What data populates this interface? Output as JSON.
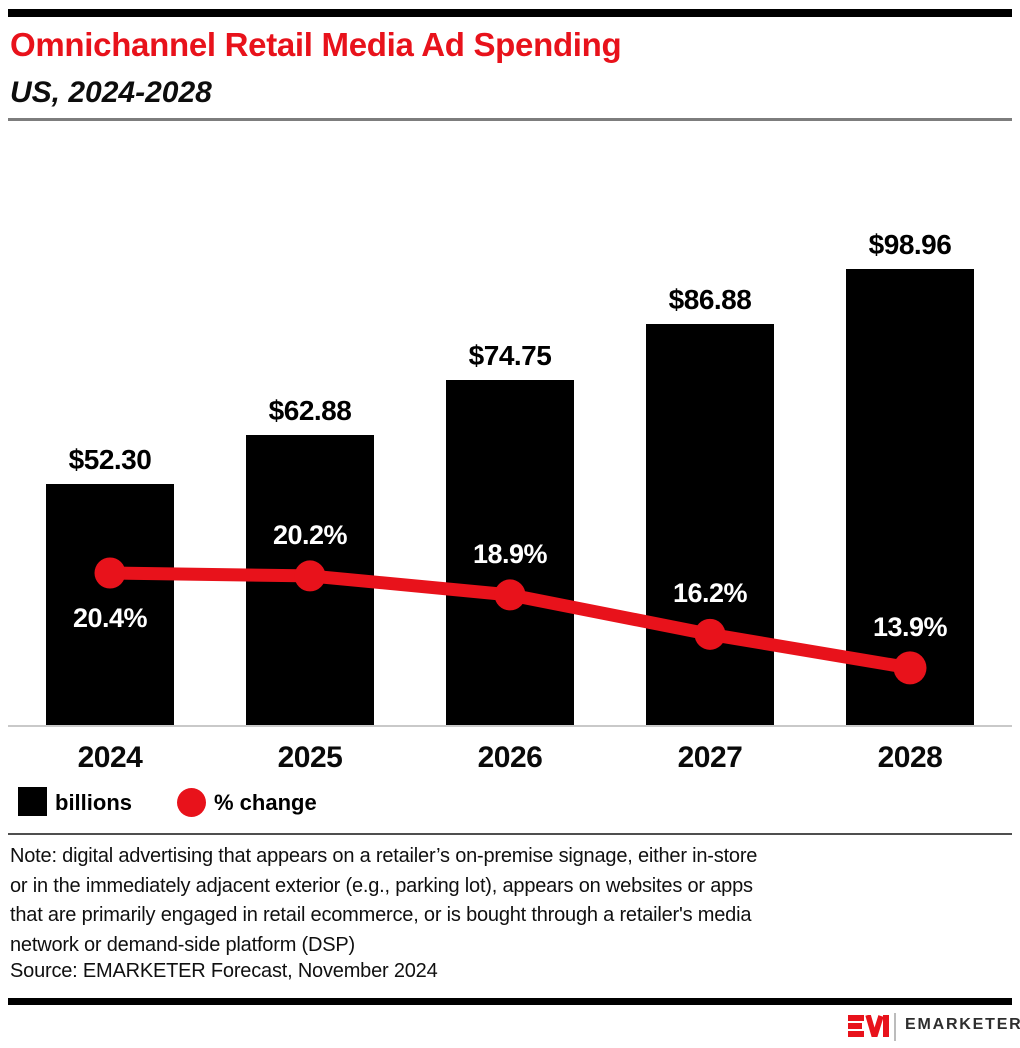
{
  "colors": {
    "accent_red": "#e8121b",
    "bar_black": "#000000",
    "header_rule_gray": "#7d7d7d",
    "axis_gray": "#c9c9c9",
    "note_rule_gray": "#4f4f4f",
    "wordmark_gray": "#2e2e2e"
  },
  "chart_data": {
    "type": "bar+line",
    "title": "Omnichannel Retail Media Ad Spending",
    "subtitle": "US, 2024-2028",
    "categories": [
      "2024",
      "2025",
      "2026",
      "2027",
      "2028"
    ],
    "series": [
      {
        "name": "billions",
        "type": "bar",
        "values": [
          52.3,
          62.88,
          74.75,
          86.88,
          98.96
        ],
        "labels": [
          "$52.30",
          "$62.88",
          "$74.75",
          "$86.88",
          "$98.96"
        ],
        "color": "#000000"
      },
      {
        "name": "% change",
        "type": "line",
        "values": [
          20.4,
          20.2,
          18.9,
          16.2,
          13.9
        ],
        "labels": [
          "20.4%",
          "20.2%",
          "18.9%",
          "16.2%",
          "13.9%"
        ],
        "color": "#e8121b"
      }
    ],
    "ylim": [
      0,
      105
    ],
    "grid": false,
    "legend_position": "bottom-left",
    "value_labels_position": "above-bars",
    "pct_label_positions": [
      "below-point",
      "above-point",
      "above-point",
      "above-point",
      "above-point"
    ]
  },
  "legend": {
    "bar_label": "billions",
    "line_label": "% change"
  },
  "note": {
    "lines": [
      "Note: digital advertising that appears on a retailer’s on-premise signage, either in-store",
      "or in the immediately adjacent exterior (e.g., parking lot), appears on websites or apps",
      "that are primarily engaged in retail ecommerce, or is bought through a retailer's media",
      "network or demand-side platform (DSP)"
    ],
    "source": "Source: EMARKETER Forecast, November 2024"
  },
  "footer": {
    "brand": "EMARKETER"
  }
}
